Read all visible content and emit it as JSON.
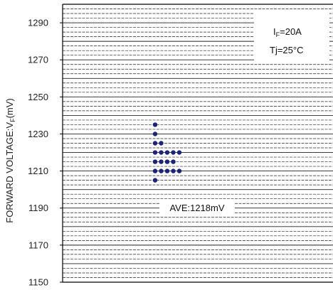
{
  "chart_data": {
    "type": "scatter",
    "title": "",
    "ylabel": "FORWARD VOLTAGE:V",
    "ylabel_sub": "F",
    "ylabel_unit": "(mV)",
    "ylim": [
      1150,
      1300
    ],
    "yticks": [
      1150,
      1170,
      1190,
      1210,
      1230,
      1250,
      1270,
      1290
    ],
    "grid": "horizontal dashed, every 2.5 mV",
    "point_color": "#1a237e",
    "x_columns": 5,
    "points": [
      {
        "col": 1,
        "y": 1235
      },
      {
        "col": 1,
        "y": 1230
      },
      {
        "col": 1,
        "y": 1225
      },
      {
        "col": 2,
        "y": 1225
      },
      {
        "col": 1,
        "y": 1220
      },
      {
        "col": 2,
        "y": 1220
      },
      {
        "col": 3,
        "y": 1220
      },
      {
        "col": 4,
        "y": 1220
      },
      {
        "col": 5,
        "y": 1220
      },
      {
        "col": 1,
        "y": 1215
      },
      {
        "col": 2,
        "y": 1215
      },
      {
        "col": 3,
        "y": 1215
      },
      {
        "col": 4,
        "y": 1215
      },
      {
        "col": 1,
        "y": 1210
      },
      {
        "col": 2,
        "y": 1210
      },
      {
        "col": 3,
        "y": 1210
      },
      {
        "col": 4,
        "y": 1210
      },
      {
        "col": 5,
        "y": 1210
      },
      {
        "col": 1,
        "y": 1205
      }
    ],
    "conditions": {
      "if_main": "I",
      "if_sub": "F",
      "if_value": "=20A",
      "tj": "Tj=25°C"
    },
    "annotation": {
      "text": "AVE:1218mV",
      "y": 1190
    }
  }
}
